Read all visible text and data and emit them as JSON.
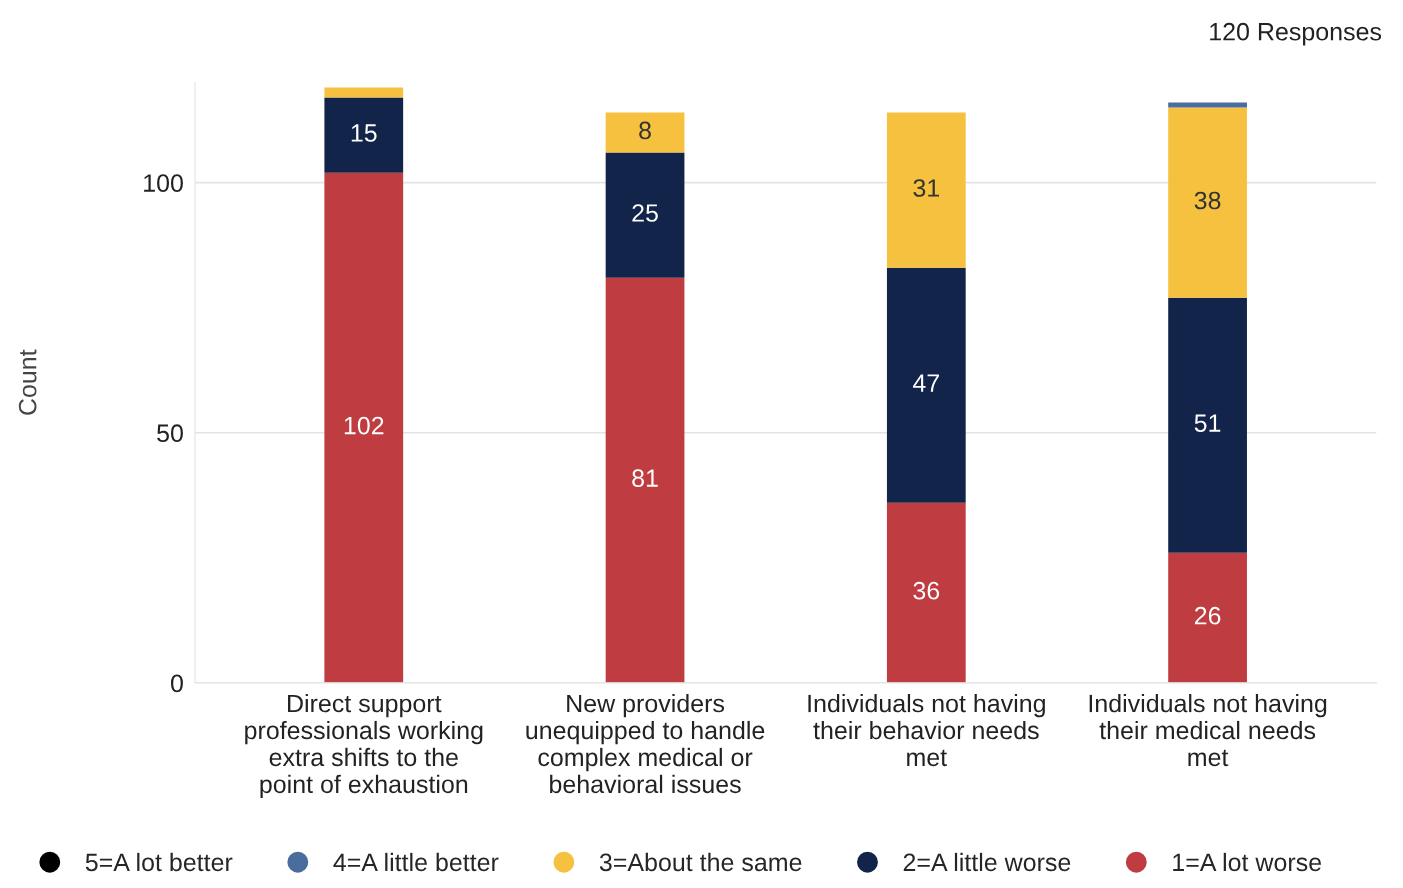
{
  "chart_data": {
    "type": "bar",
    "stacked": true,
    "ylabel": "Count",
    "categories": [
      "Direct support professionals working extra shifts to the point of exhaustion",
      "New providers unequipped to handle complex medical or behavioral issues",
      "Individuals not having their behavior needs met",
      "Individuals not having their medical needs met"
    ],
    "series": [
      {
        "name": "1=A lot worse",
        "color": "#bf3c41",
        "values": [
          102,
          81,
          36,
          26
        ],
        "value_labels": [
          "102",
          "81",
          "36",
          "26"
        ]
      },
      {
        "name": "2=A little worse",
        "color": "#13244a",
        "values": [
          15,
          25,
          47,
          51
        ],
        "value_labels": [
          "15",
          "25",
          "47",
          "51"
        ]
      },
      {
        "name": "3=About the same",
        "color": "#f5c13f",
        "values": [
          2,
          8,
          31,
          38
        ],
        "value_labels": [
          null,
          "8",
          "31",
          "38"
        ]
      },
      {
        "name": "4=A little better",
        "color": "#4b6d9e",
        "values": [
          0,
          0,
          0,
          1
        ],
        "value_labels": [
          null,
          null,
          null,
          null
        ]
      },
      {
        "name": "5=A lot better",
        "color": "#000000",
        "values": [
          0,
          0,
          0,
          0
        ],
        "value_labels": [
          null,
          null,
          null,
          null
        ]
      }
    ],
    "ylim": [
      0,
      120
    ],
    "yticks": [
      0,
      50,
      100
    ],
    "grid": "y",
    "legend": "bottom",
    "annotations": [
      "120 Responses"
    ]
  }
}
